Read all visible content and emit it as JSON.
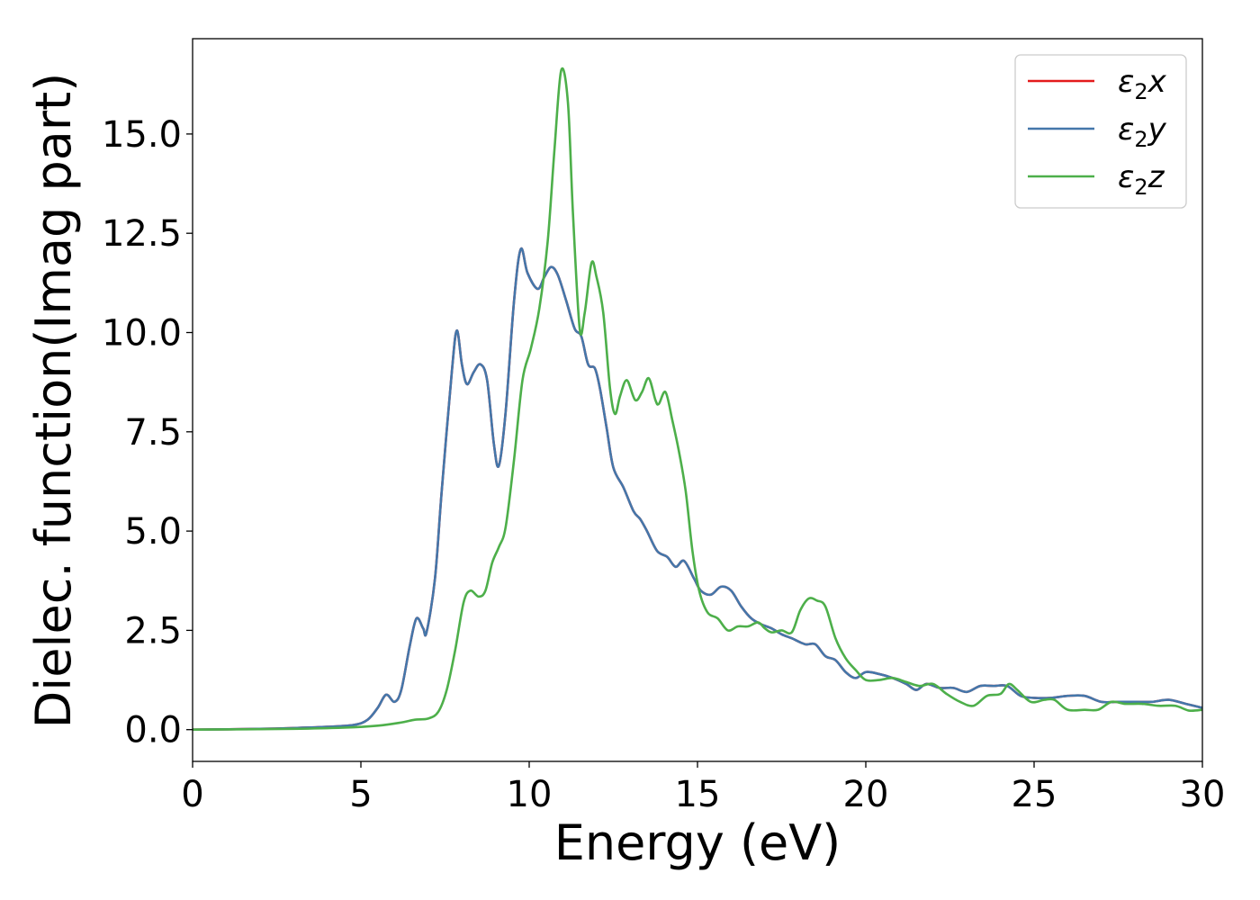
{
  "chart_data": {
    "type": "line",
    "xlabel": "Energy (eV)",
    "ylabel": "Dielec. function(Imag part)",
    "xlim": [
      0,
      30
    ],
    "ylim": [
      -0.8,
      17.4
    ],
    "xticks": [
      0,
      5,
      10,
      15,
      20,
      25,
      30
    ],
    "xtick_labels": [
      "0",
      "5",
      "10",
      "15",
      "20",
      "25",
      "30"
    ],
    "yticks": [
      0.0,
      2.5,
      5.0,
      7.5,
      10.0,
      12.5,
      15.0
    ],
    "ytick_labels": [
      "0.0",
      "2.5",
      "5.0",
      "7.5",
      "10.0",
      "12.5",
      "15.0"
    ],
    "grid": false,
    "legend_position": "top-right",
    "series": [
      {
        "name": "ε₂x",
        "legend_base": "ε",
        "legend_sub": "2",
        "legend_var": "x",
        "color": "#e41a1c",
        "points": [
          [
            0,
            0.0
          ],
          [
            2,
            0.02
          ],
          [
            3,
            0.04
          ],
          [
            4,
            0.07
          ],
          [
            4.8,
            0.12
          ],
          [
            5.2,
            0.25
          ],
          [
            5.5,
            0.55
          ],
          [
            5.75,
            0.88
          ],
          [
            6.0,
            0.7
          ],
          [
            6.2,
            1.0
          ],
          [
            6.45,
            2.1
          ],
          [
            6.65,
            2.8
          ],
          [
            6.85,
            2.55
          ],
          [
            6.95,
            2.45
          ],
          [
            7.2,
            3.8
          ],
          [
            7.4,
            6.0
          ],
          [
            7.7,
            9.0
          ],
          [
            7.85,
            10.05
          ],
          [
            8.0,
            9.2
          ],
          [
            8.15,
            8.7
          ],
          [
            8.35,
            9.0
          ],
          [
            8.55,
            9.2
          ],
          [
            8.75,
            8.8
          ],
          [
            8.95,
            7.2
          ],
          [
            9.1,
            6.65
          ],
          [
            9.3,
            8.0
          ],
          [
            9.55,
            10.8
          ],
          [
            9.75,
            12.1
          ],
          [
            9.95,
            11.5
          ],
          [
            10.25,
            11.1
          ],
          [
            10.45,
            11.4
          ],
          [
            10.65,
            11.65
          ],
          [
            10.85,
            11.45
          ],
          [
            11.1,
            10.8
          ],
          [
            11.35,
            10.1
          ],
          [
            11.55,
            9.9
          ],
          [
            11.75,
            9.2
          ],
          [
            11.95,
            9.1
          ],
          [
            12.1,
            8.6
          ],
          [
            12.3,
            7.6
          ],
          [
            12.5,
            6.6
          ],
          [
            12.8,
            6.1
          ],
          [
            13.1,
            5.5
          ],
          [
            13.3,
            5.3
          ],
          [
            13.5,
            5.0
          ],
          [
            13.8,
            4.5
          ],
          [
            14.1,
            4.35
          ],
          [
            14.35,
            4.1
          ],
          [
            14.6,
            4.25
          ],
          [
            14.9,
            3.8
          ],
          [
            15.1,
            3.5
          ],
          [
            15.4,
            3.4
          ],
          [
            15.7,
            3.6
          ],
          [
            16.0,
            3.5
          ],
          [
            16.3,
            3.1
          ],
          [
            16.6,
            2.8
          ],
          [
            16.9,
            2.65
          ],
          [
            17.2,
            2.55
          ],
          [
            17.5,
            2.4
          ],
          [
            17.8,
            2.3
          ],
          [
            18.2,
            2.15
          ],
          [
            18.5,
            2.15
          ],
          [
            18.8,
            1.85
          ],
          [
            19.1,
            1.75
          ],
          [
            19.4,
            1.45
          ],
          [
            19.7,
            1.3
          ],
          [
            20.0,
            1.45
          ],
          [
            20.4,
            1.4
          ],
          [
            20.8,
            1.3
          ],
          [
            21.2,
            1.15
          ],
          [
            21.5,
            1.0
          ],
          [
            21.8,
            1.15
          ],
          [
            22.2,
            1.05
          ],
          [
            22.6,
            1.05
          ],
          [
            23.0,
            0.95
          ],
          [
            23.4,
            1.1
          ],
          [
            23.8,
            1.1
          ],
          [
            24.2,
            1.1
          ],
          [
            24.6,
            0.85
          ],
          [
            25.0,
            0.8
          ],
          [
            25.5,
            0.8
          ],
          [
            26.0,
            0.85
          ],
          [
            26.5,
            0.85
          ],
          [
            27.0,
            0.7
          ],
          [
            27.5,
            0.7
          ],
          [
            28.0,
            0.7
          ],
          [
            28.5,
            0.7
          ],
          [
            29.0,
            0.75
          ],
          [
            29.5,
            0.65
          ],
          [
            30.0,
            0.55
          ]
        ]
      },
      {
        "name": "ε₂y",
        "legend_base": "ε",
        "legend_sub": "2",
        "legend_var": "y",
        "color": "#4477aa",
        "points": [
          [
            0,
            0.0
          ],
          [
            2,
            0.02
          ],
          [
            3,
            0.04
          ],
          [
            4,
            0.07
          ],
          [
            4.8,
            0.12
          ],
          [
            5.2,
            0.25
          ],
          [
            5.5,
            0.55
          ],
          [
            5.75,
            0.88
          ],
          [
            6.0,
            0.7
          ],
          [
            6.2,
            1.0
          ],
          [
            6.45,
            2.1
          ],
          [
            6.65,
            2.8
          ],
          [
            6.85,
            2.55
          ],
          [
            6.95,
            2.45
          ],
          [
            7.2,
            3.8
          ],
          [
            7.4,
            6.0
          ],
          [
            7.7,
            9.0
          ],
          [
            7.85,
            10.05
          ],
          [
            8.0,
            9.2
          ],
          [
            8.15,
            8.7
          ],
          [
            8.35,
            9.0
          ],
          [
            8.55,
            9.2
          ],
          [
            8.75,
            8.8
          ],
          [
            8.95,
            7.2
          ],
          [
            9.1,
            6.65
          ],
          [
            9.3,
            8.0
          ],
          [
            9.55,
            10.8
          ],
          [
            9.75,
            12.1
          ],
          [
            9.95,
            11.5
          ],
          [
            10.25,
            11.1
          ],
          [
            10.45,
            11.4
          ],
          [
            10.65,
            11.65
          ],
          [
            10.85,
            11.45
          ],
          [
            11.1,
            10.8
          ],
          [
            11.35,
            10.1
          ],
          [
            11.55,
            9.9
          ],
          [
            11.75,
            9.2
          ],
          [
            11.95,
            9.1
          ],
          [
            12.1,
            8.6
          ],
          [
            12.3,
            7.6
          ],
          [
            12.5,
            6.6
          ],
          [
            12.8,
            6.1
          ],
          [
            13.1,
            5.5
          ],
          [
            13.3,
            5.3
          ],
          [
            13.5,
            5.0
          ],
          [
            13.8,
            4.5
          ],
          [
            14.1,
            4.35
          ],
          [
            14.35,
            4.1
          ],
          [
            14.6,
            4.25
          ],
          [
            14.9,
            3.8
          ],
          [
            15.1,
            3.5
          ],
          [
            15.4,
            3.4
          ],
          [
            15.7,
            3.6
          ],
          [
            16.0,
            3.5
          ],
          [
            16.3,
            3.1
          ],
          [
            16.6,
            2.8
          ],
          [
            16.9,
            2.65
          ],
          [
            17.2,
            2.55
          ],
          [
            17.5,
            2.4
          ],
          [
            17.8,
            2.3
          ],
          [
            18.2,
            2.15
          ],
          [
            18.5,
            2.15
          ],
          [
            18.8,
            1.85
          ],
          [
            19.1,
            1.75
          ],
          [
            19.4,
            1.45
          ],
          [
            19.7,
            1.3
          ],
          [
            20.0,
            1.45
          ],
          [
            20.4,
            1.4
          ],
          [
            20.8,
            1.3
          ],
          [
            21.2,
            1.15
          ],
          [
            21.5,
            1.0
          ],
          [
            21.8,
            1.15
          ],
          [
            22.2,
            1.05
          ],
          [
            22.6,
            1.05
          ],
          [
            23.0,
            0.95
          ],
          [
            23.4,
            1.1
          ],
          [
            23.8,
            1.1
          ],
          [
            24.2,
            1.1
          ],
          [
            24.6,
            0.85
          ],
          [
            25.0,
            0.8
          ],
          [
            25.5,
            0.8
          ],
          [
            26.0,
            0.85
          ],
          [
            26.5,
            0.85
          ],
          [
            27.0,
            0.7
          ],
          [
            27.5,
            0.7
          ],
          [
            28.0,
            0.7
          ],
          [
            28.5,
            0.7
          ],
          [
            29.0,
            0.75
          ],
          [
            29.5,
            0.65
          ],
          [
            30.0,
            0.55
          ]
        ]
      },
      {
        "name": "ε₂z",
        "legend_base": "ε",
        "legend_sub": "2",
        "legend_var": "z",
        "color": "#4daf4a",
        "points": [
          [
            0,
            0.0
          ],
          [
            3,
            0.02
          ],
          [
            4.5,
            0.05
          ],
          [
            5.5,
            0.1
          ],
          [
            6.2,
            0.18
          ],
          [
            6.6,
            0.25
          ],
          [
            7.0,
            0.28
          ],
          [
            7.3,
            0.45
          ],
          [
            7.55,
            1.0
          ],
          [
            7.8,
            2.0
          ],
          [
            8.05,
            3.2
          ],
          [
            8.25,
            3.5
          ],
          [
            8.5,
            3.35
          ],
          [
            8.7,
            3.5
          ],
          [
            8.9,
            4.2
          ],
          [
            9.1,
            4.6
          ],
          [
            9.3,
            5.1
          ],
          [
            9.55,
            6.8
          ],
          [
            9.8,
            8.8
          ],
          [
            10.05,
            9.6
          ],
          [
            10.3,
            10.6
          ],
          [
            10.55,
            12.3
          ],
          [
            10.75,
            14.6
          ],
          [
            10.95,
            16.6
          ],
          [
            11.15,
            15.8
          ],
          [
            11.3,
            13.0
          ],
          [
            11.5,
            10.1
          ],
          [
            11.65,
            10.5
          ],
          [
            11.85,
            11.75
          ],
          [
            12.0,
            11.4
          ],
          [
            12.2,
            10.5
          ],
          [
            12.4,
            8.6
          ],
          [
            12.55,
            7.95
          ],
          [
            12.7,
            8.4
          ],
          [
            12.9,
            8.8
          ],
          [
            13.15,
            8.3
          ],
          [
            13.35,
            8.5
          ],
          [
            13.55,
            8.85
          ],
          [
            13.75,
            8.3
          ],
          [
            13.85,
            8.2
          ],
          [
            14.05,
            8.5
          ],
          [
            14.25,
            7.8
          ],
          [
            14.45,
            7.0
          ],
          [
            14.65,
            6.0
          ],
          [
            14.85,
            4.5
          ],
          [
            15.05,
            3.5
          ],
          [
            15.3,
            2.95
          ],
          [
            15.6,
            2.8
          ],
          [
            15.9,
            2.5
          ],
          [
            16.2,
            2.6
          ],
          [
            16.5,
            2.6
          ],
          [
            16.8,
            2.7
          ],
          [
            17.0,
            2.55
          ],
          [
            17.2,
            2.45
          ],
          [
            17.5,
            2.5
          ],
          [
            17.8,
            2.45
          ],
          [
            18.05,
            3.0
          ],
          [
            18.3,
            3.3
          ],
          [
            18.55,
            3.25
          ],
          [
            18.8,
            3.1
          ],
          [
            19.1,
            2.3
          ],
          [
            19.4,
            1.8
          ],
          [
            19.7,
            1.5
          ],
          [
            20.0,
            1.25
          ],
          [
            20.4,
            1.25
          ],
          [
            20.8,
            1.3
          ],
          [
            21.2,
            1.2
          ],
          [
            21.6,
            1.1
          ],
          [
            22.0,
            1.15
          ],
          [
            22.4,
            0.9
          ],
          [
            22.8,
            0.7
          ],
          [
            23.2,
            0.6
          ],
          [
            23.6,
            0.85
          ],
          [
            24.0,
            0.9
          ],
          [
            24.25,
            1.15
          ],
          [
            24.5,
            1.0
          ],
          [
            24.9,
            0.7
          ],
          [
            25.3,
            0.75
          ],
          [
            25.6,
            0.75
          ],
          [
            26.0,
            0.5
          ],
          [
            26.5,
            0.5
          ],
          [
            26.9,
            0.5
          ],
          [
            27.3,
            0.7
          ],
          [
            27.7,
            0.65
          ],
          [
            28.2,
            0.65
          ],
          [
            28.7,
            0.6
          ],
          [
            29.2,
            0.6
          ],
          [
            29.6,
            0.48
          ],
          [
            30.0,
            0.5
          ]
        ]
      }
    ]
  }
}
